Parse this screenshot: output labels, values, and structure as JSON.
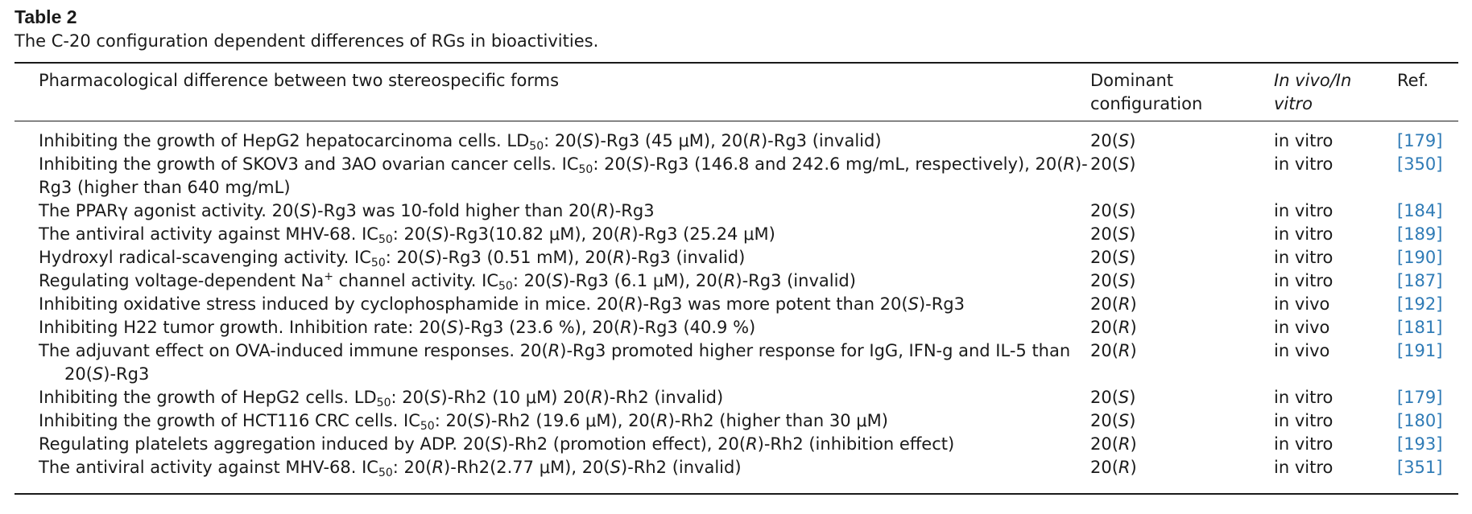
{
  "caption": {
    "label": "Table 2",
    "text": "The C-20 configuration dependent differences of RGs in bioactivities."
  },
  "headers": {
    "difference": "Pharmacological difference between two stereospecific forms",
    "configuration_line1": "Dominant",
    "configuration_line2": "configuration",
    "invivo_line1": "In vivo/In",
    "invivo_line2": "vitro",
    "ref": "Ref."
  },
  "rows": [
    {
      "configuration": "20(S)",
      "model": "in vitro",
      "ref": "[179]"
    },
    {
      "configuration": "20(S)",
      "model": "in vitro",
      "ref": "[350]"
    },
    {
      "configuration": "20(S)",
      "model": "in vitro",
      "ref": "[184]"
    },
    {
      "configuration": "20(S)",
      "model": "in vitro",
      "ref": "[189]"
    },
    {
      "configuration": "20(S)",
      "model": "in vitro",
      "ref": "[190]"
    },
    {
      "configuration": "20(S)",
      "model": "in vitro",
      "ref": "[187]"
    },
    {
      "configuration": "20(R)",
      "model": "in vivo",
      "ref": "[192]"
    },
    {
      "configuration": "20(R)",
      "model": "in vivo",
      "ref": "[181]"
    },
    {
      "configuration": "20(R)",
      "model": "in vivo",
      "ref": "[191]"
    },
    {
      "configuration": "20(S)",
      "model": "in vitro",
      "ref": "[179]"
    },
    {
      "configuration": "20(S)",
      "model": "in vitro",
      "ref": "[180]"
    },
    {
      "configuration": "20(R)",
      "model": "in vitro",
      "ref": "[193]"
    },
    {
      "configuration": "20(R)",
      "model": "in vitro",
      "ref": "[351]"
    }
  ],
  "difference_text": {
    "r0": {
      "a": "Inhibiting the growth of HepG2 hepatocarcinoma cells. LD",
      "sub": "50",
      "b": ": 20(",
      "s1": "S",
      "c": ")-Rg3 (45 μM), 20(",
      "s2": "R",
      "d": ")-Rg3 (invalid)"
    },
    "r1": {
      "a": "Inhibiting the growth of SKOV3 and 3AO ovarian cancer cells. IC",
      "sub": "50",
      "b": ": 20(",
      "s1": "S",
      "c": ")-Rg3 (146.8 and 242.6 mg/mL, respectively), 20(",
      "s2": "R",
      "d": ")-",
      "line2": "Rg3 (higher than 640 mg/mL)"
    },
    "r2": {
      "a": "The PPARγ agonist activity. 20(",
      "s1": "S",
      "b": ")-Rg3 was 10-fold higher than 20(",
      "s2": "R",
      "c": ")-Rg3"
    },
    "r3": {
      "a": "The antiviral activity against MHV-68. IC",
      "sub": "50",
      "b": ": 20(",
      "s1": "S",
      "c": ")-Rg3(10.82 μM), 20(",
      "s2": "R",
      "d": ")-Rg3 (25.24 μM)"
    },
    "r4": {
      "a": "Hydroxyl radical-scavenging activity. IC",
      "sub": "50",
      "b": ": 20(",
      "s1": "S",
      "c": ")-Rg3 (0.51 mM), 20(",
      "s2": "R",
      "d": ")-Rg3 (invalid)"
    },
    "r5": {
      "a": "Regulating voltage-dependent Na",
      "sup": "+",
      "b": " channel activity. IC",
      "sub": "50",
      "c": ": 20(",
      "s1": "S",
      "d": ")-Rg3 (6.1 μM), 20(",
      "s2": "R",
      "e": ")-Rg3 (invalid)"
    },
    "r6": {
      "a": "Inhibiting oxidative stress induced by cyclophosphamide in mice. 20(",
      "s1": "R",
      "b": ")-Rg3 was more potent than 20(",
      "s2": "S",
      "c": ")-Rg3"
    },
    "r7": {
      "a": "Inhibiting H22 tumor growth. Inhibition rate: 20(",
      "s1": "S",
      "b": ")-Rg3 (23.6 %), 20(",
      "s2": "R",
      "c": ")-Rg3 (40.9 %)"
    },
    "r8": {
      "a": "The adjuvant effect on OVA-induced immune responses. 20(",
      "s1": "R",
      "b": ")-Rg3 promoted higher response for IgG, IFN-g and IL-5 than",
      "l2a": "20(",
      "s2": "S",
      "l2b": ")-Rg3"
    },
    "r9": {
      "a": "Inhibiting the growth of HepG2 cells. LD",
      "sub": "50",
      "b": ": 20(",
      "s1": "S",
      "c": ")-Rh2 (10 μM) 20(",
      "s2": "R",
      "d": ")-Rh2 (invalid)"
    },
    "r10": {
      "a": "Inhibiting the growth of HCT116 CRC cells. IC",
      "sub": "50",
      "b": ": 20(",
      "s1": "S",
      "c": ")-Rh2 (19.6 μM), 20(",
      "s2": "R",
      "d": ")-Rh2 (higher than 30 μM)"
    },
    "r11": {
      "a": "Regulating platelets aggregation induced by ADP. 20(",
      "s1": "S",
      "b": ")-Rh2 (promotion effect), 20(",
      "s2": "R",
      "c": ")-Rh2 (inhibition effect)"
    },
    "r12": {
      "a": "The antiviral activity against MHV-68. IC",
      "sub": "50",
      "b": ": 20(",
      "s1": "R",
      "c": ")-Rh2(2.77 μM), 20(",
      "s2": "S",
      "d": ")-Rh2 (invalid)"
    }
  },
  "colors": {
    "text": "#1a1a1a",
    "reference_link": "#2f7bb6"
  }
}
